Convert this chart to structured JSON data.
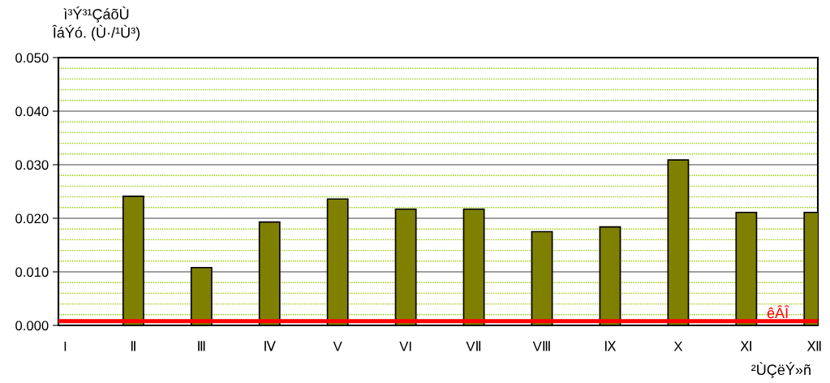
{
  "chart_data": {
    "type": "bar",
    "ylabel": "ì³Ý³¹ÇáõÙ\nÎáÝó. (Ù·/¹Ù³)",
    "xlabel": "²ÙÇëÝ»ñ",
    "categories": [
      "I",
      "Ⅱ",
      "Ⅲ",
      "Ⅳ",
      "V",
      "VI",
      "VⅡ",
      "VⅢ",
      "Ⅸ",
      "X",
      "Ⅺ",
      "Ⅻ"
    ],
    "values": [
      null,
      0.0241,
      0.0108,
      0.0193,
      0.0236,
      0.0217,
      0.0217,
      0.0175,
      0.0184,
      0.0309,
      0.0211,
      0.0211
    ],
    "color": "#808000",
    "ylim": [
      0,
      0.05
    ],
    "yticks": [
      {
        "value": 0,
        "label": "0.000"
      },
      {
        "value": 0.002,
        "label": null
      },
      {
        "value": 0.004,
        "label": null
      },
      {
        "value": 0.006,
        "label": null
      },
      {
        "value": 0.008,
        "label": null
      },
      {
        "value": 0.01,
        "label": "0.010"
      },
      {
        "value": 0.012,
        "label": null
      },
      {
        "value": 0.014,
        "label": null
      },
      {
        "value": 0.016,
        "label": null
      },
      {
        "value": 0.018,
        "label": null
      },
      {
        "value": 0.02,
        "label": "0.020"
      },
      {
        "value": 0.022,
        "label": null
      },
      {
        "value": 0.024,
        "label": null
      },
      {
        "value": 0.026,
        "label": null
      },
      {
        "value": 0.028,
        "label": null
      },
      {
        "value": 0.03,
        "label": "0.030"
      },
      {
        "value": 0.032,
        "label": null
      },
      {
        "value": 0.034,
        "label": null
      },
      {
        "value": 0.036,
        "label": null
      },
      {
        "value": 0.038,
        "label": null
      },
      {
        "value": 0.04,
        "label": "0.040"
      },
      {
        "value": 0.042,
        "label": null
      },
      {
        "value": 0.044,
        "label": null
      },
      {
        "value": 0.046,
        "label": null
      },
      {
        "value": 0.048,
        "label": null
      },
      {
        "value": 0.05,
        "label": "0.050"
      }
    ],
    "grid": "y",
    "ref_lines": [
      {
        "axis": "y",
        "value": 0.0008,
        "label": "êÂÎ",
        "color": "#ff0000"
      }
    ]
  }
}
